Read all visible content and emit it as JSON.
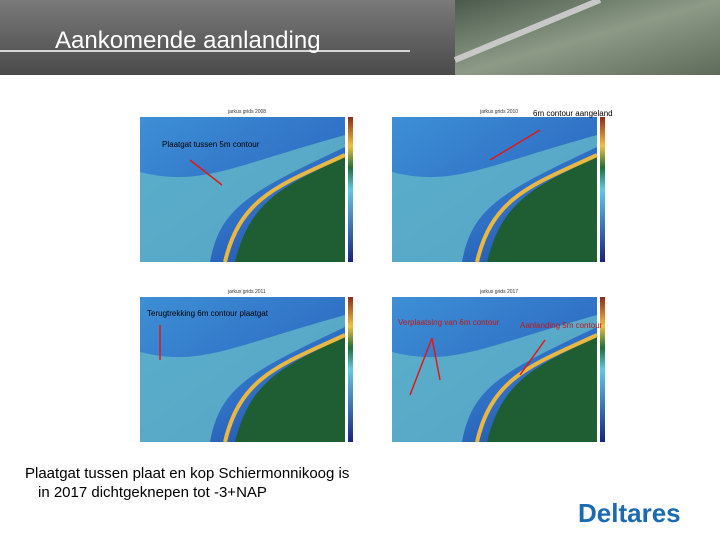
{
  "header": {
    "title": "Aankomende aanlanding"
  },
  "panels": [
    {
      "title": "jarkus grids 2008"
    },
    {
      "title": "jarkus grids 2010"
    },
    {
      "title": "jarkus grids 2011"
    },
    {
      "title": "jarkus grids 2017"
    }
  ],
  "annotations": [
    {
      "text": "6m contour aangeland"
    },
    {
      "text": "Plaatgat tussen 5m contour"
    },
    {
      "text": "Terugtrekking 6m contour plaatgat"
    },
    {
      "text": "Verplaatsing van 6m contour"
    },
    {
      "text": "Aanlanding 5m contour"
    }
  ],
  "footer": {
    "text": "Plaatgat tussen plaat en kop Schiermonnikoog is in 2017 dichtgeknepen tot -3+NAP"
  },
  "logo": {
    "text": "Deltares"
  }
}
